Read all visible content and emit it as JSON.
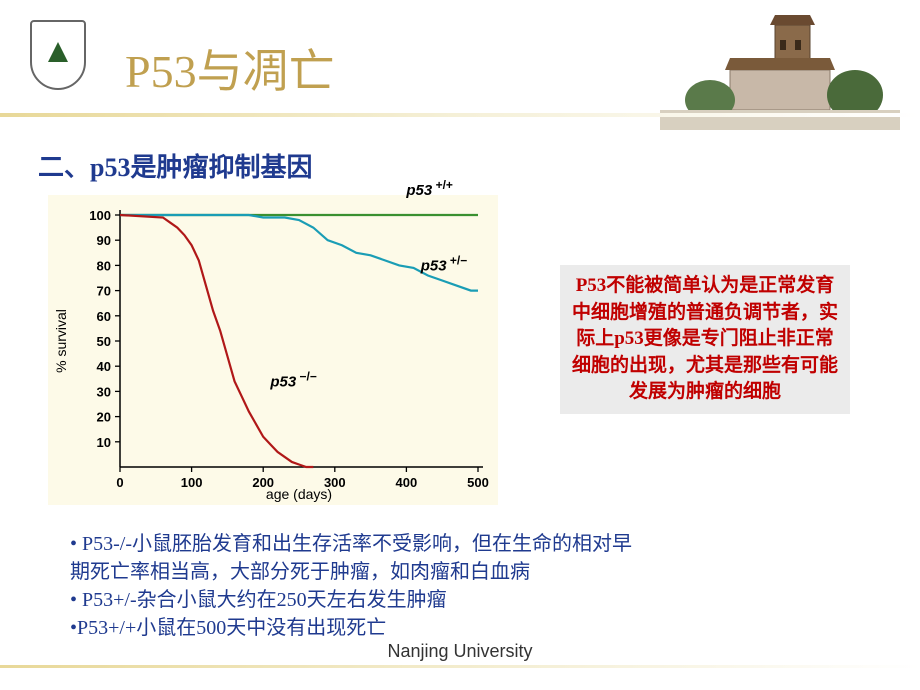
{
  "header": {
    "title": "P53与凋亡"
  },
  "subtitle": "二、p53是肿瘤抑制基因",
  "chart": {
    "type": "line",
    "background_color": "#fdfae8",
    "xlabel": "age (days)",
    "ylabel": "% survival",
    "label_fontsize": 14,
    "axis_color": "#000000",
    "xlim": [
      0,
      500
    ],
    "ylim": [
      0,
      100
    ],
    "xticks": [
      0,
      100,
      200,
      300,
      400,
      500
    ],
    "yticks": [
      10,
      20,
      30,
      40,
      50,
      60,
      70,
      80,
      90,
      100
    ],
    "tick_fontsize": 13,
    "line_width": 2.2,
    "series": [
      {
        "label": "p53 +/+",
        "label_style": "italic-bold",
        "color": "#3a9030",
        "points": [
          [
            0,
            100
          ],
          [
            500,
            100
          ]
        ],
        "label_pos": [
          400,
          108
        ]
      },
      {
        "label": "p53 +/−",
        "label_style": "italic-bold",
        "color": "#1a9db5",
        "points": [
          [
            0,
            100
          ],
          [
            180,
            100
          ],
          [
            200,
            99
          ],
          [
            230,
            99
          ],
          [
            250,
            98
          ],
          [
            270,
            95
          ],
          [
            290,
            90
          ],
          [
            310,
            88
          ],
          [
            330,
            85
          ],
          [
            350,
            84
          ],
          [
            370,
            82
          ],
          [
            390,
            80
          ],
          [
            410,
            79
          ],
          [
            430,
            76
          ],
          [
            450,
            74
          ],
          [
            470,
            72
          ],
          [
            490,
            70
          ],
          [
            500,
            70
          ]
        ],
        "label_pos": [
          420,
          78
        ]
      },
      {
        "label": "p53 −/−",
        "label_style": "italic-bold",
        "color": "#b01818",
        "points": [
          [
            0,
            100
          ],
          [
            60,
            99
          ],
          [
            70,
            97
          ],
          [
            80,
            95
          ],
          [
            90,
            92
          ],
          [
            100,
            88
          ],
          [
            110,
            82
          ],
          [
            120,
            72
          ],
          [
            130,
            62
          ],
          [
            140,
            54
          ],
          [
            150,
            44
          ],
          [
            160,
            34
          ],
          [
            170,
            28
          ],
          [
            180,
            22
          ],
          [
            190,
            17
          ],
          [
            200,
            12
          ],
          [
            210,
            9
          ],
          [
            220,
            6
          ],
          [
            230,
            4
          ],
          [
            240,
            2
          ],
          [
            250,
            1
          ],
          [
            260,
            0
          ],
          [
            270,
            0
          ]
        ],
        "label_pos": [
          210,
          32
        ]
      }
    ]
  },
  "info_box": {
    "text": "P53不能被简单认为是正常发育中细胞增殖的普通负调节者，实际上p53更像是专门阻止非正常细胞的出现，尤其是那些有可能发展为肿瘤的细胞",
    "text_color": "#c00000",
    "background_color": "#ebebeb",
    "fontsize": 19
  },
  "bullets": {
    "color": "#1f3a8f",
    "fontsize": 20,
    "items": [
      "• P53-/-小鼠胚胎发育和出生存活率不受影响，但在生命的相对早",
      "期死亡率相当高，大部分死于肿瘤，如肉瘤和白血病",
      "• P53+/-杂合小鼠大约在250天左右发生肿瘤",
      "•P53+/+小鼠在500天中没有出现死亡"
    ]
  },
  "footer": "Nanjing University"
}
